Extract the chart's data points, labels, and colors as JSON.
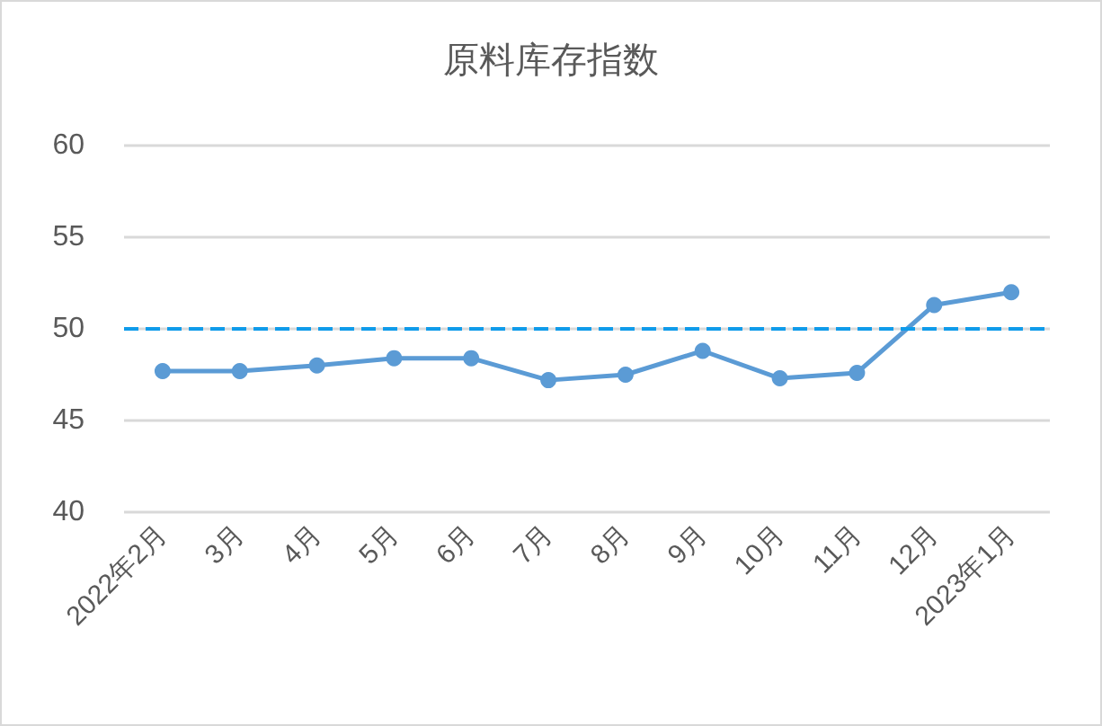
{
  "chart_data": {
    "type": "line",
    "title": "原料库存指数",
    "categories": [
      "2022年2月",
      "3月",
      "4月",
      "5月",
      "6月",
      "7月",
      "8月",
      "9月",
      "10月",
      "11月",
      "12月",
      "2023年1月"
    ],
    "series": [
      {
        "color": "#5b9bd5",
        "values": [
          47.7,
          47.7,
          48.0,
          48.4,
          48.4,
          47.2,
          47.5,
          48.8,
          47.3,
          47.6,
          51.3,
          52.0
        ]
      }
    ],
    "ylim": [
      40,
      60
    ],
    "yticks": [
      40,
      45,
      50,
      55,
      60
    ],
    "grid": "y",
    "marker": "circle",
    "line_style": "solid",
    "ref_lines": [
      {
        "axis": "y",
        "value": 50,
        "color": "#0f9bea",
        "line_style": "dashed"
      }
    ]
  }
}
